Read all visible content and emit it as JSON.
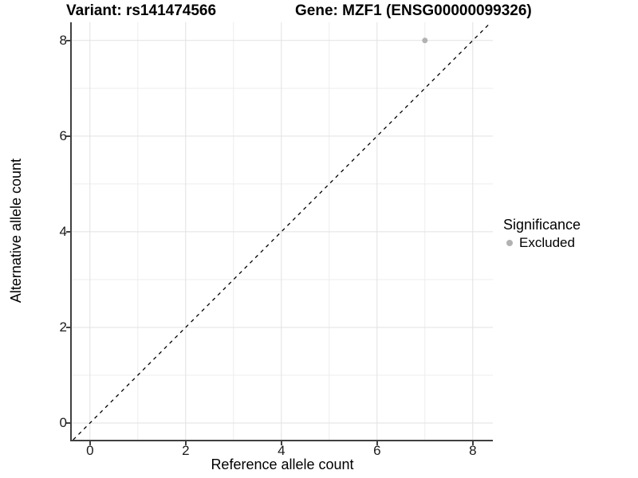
{
  "chart_data": {
    "type": "scatter",
    "title_variant": "Variant: rs141474566",
    "title_gene": "Gene: MZF1 (ENSG00000099326)",
    "xlabel": "Reference allele count",
    "ylabel": "Alternative allele count",
    "x_ticks": [
      0,
      2,
      4,
      6,
      8
    ],
    "y_ticks": [
      0,
      2,
      4,
      6,
      8
    ],
    "xlim": [
      -0.38,
      8.42
    ],
    "ylim": [
      -0.35,
      8.38
    ],
    "grid": "major and minor gridlines, white panel background",
    "reference_line": {
      "type": "identity",
      "equation": "y = x",
      "style": "dashed",
      "color": "#000000"
    },
    "series": [
      {
        "name": "Excluded",
        "color": "#b2b2b2",
        "points": [
          {
            "x": 7,
            "y": 8
          }
        ]
      }
    ],
    "legend": {
      "title": "Significance",
      "position": "right",
      "entries": [
        {
          "label": "Excluded",
          "color": "#b2b2b2",
          "marker": "dot"
        }
      ]
    }
  },
  "colors": {
    "axis_line": "#404040",
    "grid_major": "#e2e2e2",
    "grid_minor": "#ededed",
    "tick_text": "#1a1a1a"
  }
}
